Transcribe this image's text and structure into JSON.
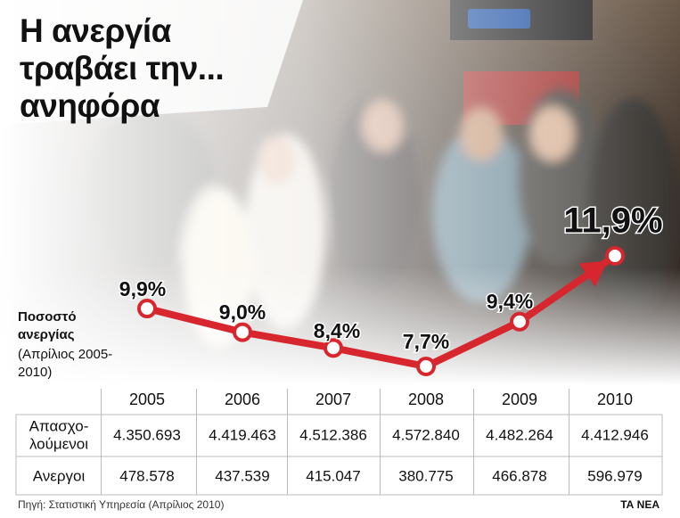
{
  "chart_data": {
    "type": "line",
    "title": "Η ανεργία τραβάει την... ανηφόρα",
    "y_label": "Ποσοστό ανεργίας",
    "y_note": "(Απρίλιος 2005-2010)",
    "categories": [
      "2005",
      "2006",
      "2007",
      "2008",
      "2009",
      "2010"
    ],
    "values": [
      9.9,
      9.0,
      8.4,
      7.7,
      9.4,
      11.9
    ],
    "value_labels": [
      "9,9%",
      "9,0%",
      "8,4%",
      "7,7%",
      "9,4%",
      "11,9%"
    ],
    "color": "#d7262e"
  },
  "table": {
    "rows": [
      {
        "label": [
          "Απασχο-",
          "λούμενοι"
        ],
        "cells": [
          "4.350.693",
          "4.419.463",
          "4.512.386",
          "4.572.840",
          "4.482.264",
          "4.412.946"
        ]
      },
      {
        "label": [
          "Ανεργοι"
        ],
        "cells": [
          "478.578",
          "437.539",
          "415.047",
          "380.775",
          "466.878",
          "596.979"
        ]
      }
    ]
  },
  "footer": {
    "source": "Πηγή: Στατιστική Υπηρεσία (Απρίλιος 2010)",
    "brand": "ΤΑ ΝΕΑ"
  }
}
